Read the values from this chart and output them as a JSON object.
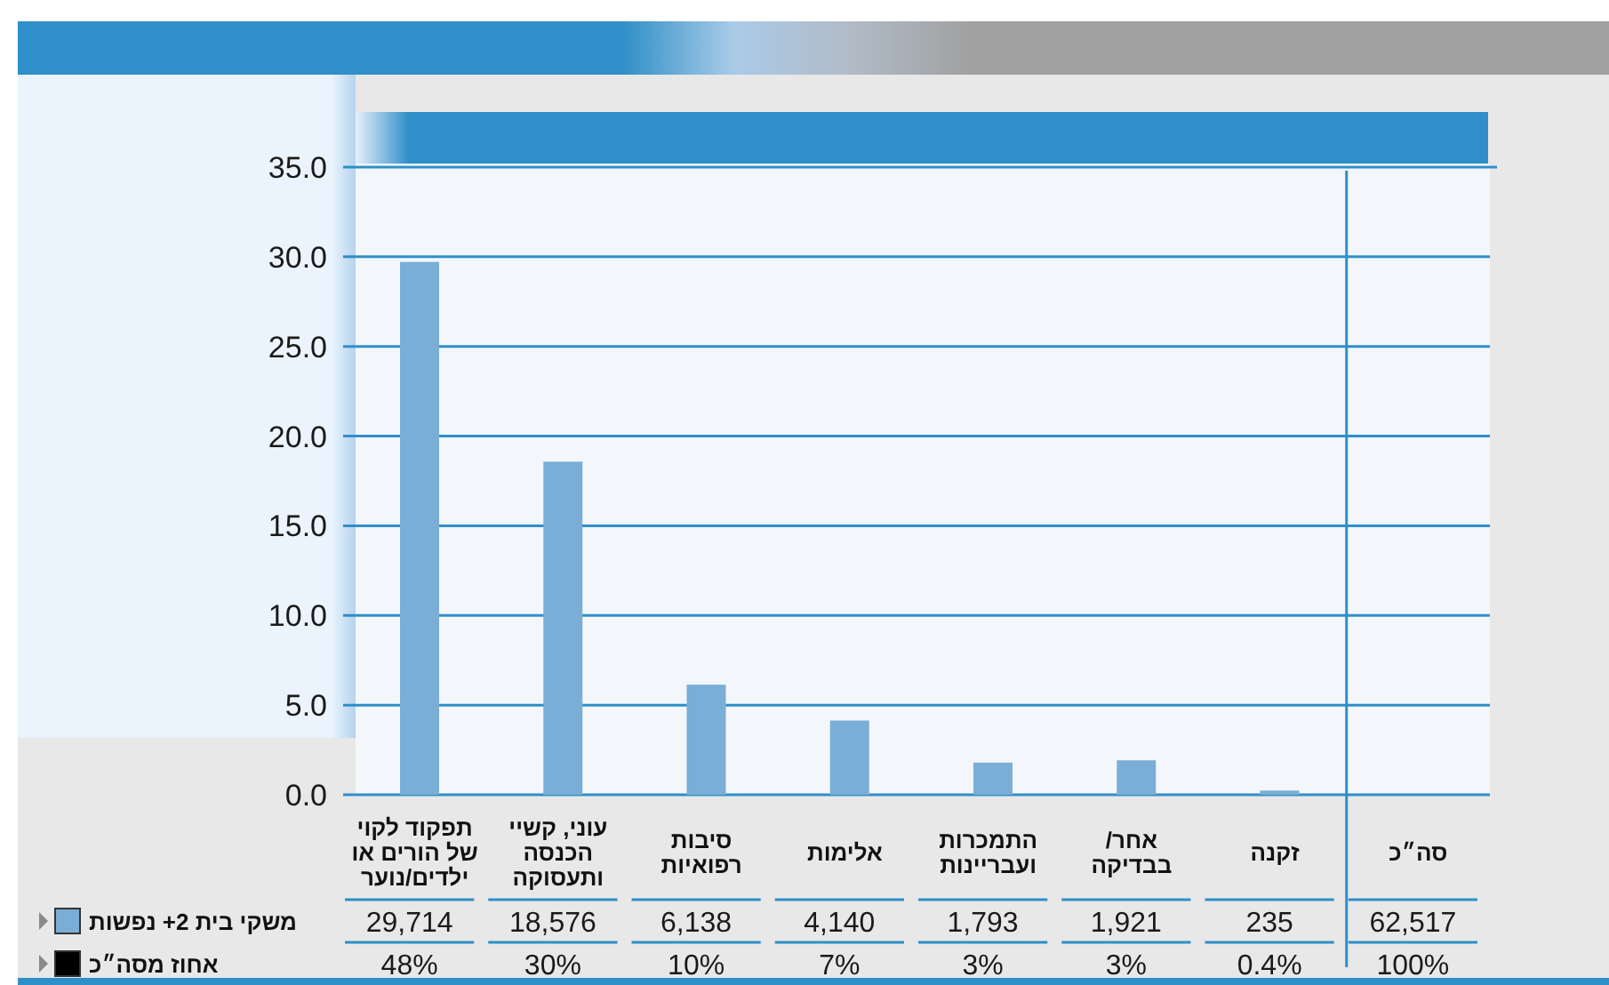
{
  "chart_data": {
    "type": "bar",
    "categories": [
      "תפקוד לקוי של הורים או ילדים/נוער",
      "עוני, קשיי הכנסה ותעסוקה",
      "סיבות רפואיות",
      "אלימות",
      "התמכרות ועבריינות",
      "אחר/ בבדיקה",
      "זקנה",
      "סה״כ"
    ],
    "series": [
      {
        "name": "משקי בית 2+ נפשות",
        "color": "#7aaed6",
        "values": [
          29.714,
          18.576,
          6.138,
          4.14,
          1.793,
          1.921,
          0.235,
          null
        ]
      },
      {
        "type": "other",
        "values": [
          null,
          null,
          null,
          null,
          null,
          null,
          null,
          null
        ],
        "value_labels": [
          "29,714",
          "18,576",
          "6,138",
          "4,140",
          "1,793",
          "1,921",
          "235",
          "62,517"
        ]
      },
      {
        "name": "אחוז מסה״כ",
        "type": "other",
        "color": "#000000",
        "values": [
          null,
          null,
          null,
          null,
          null,
          null,
          null,
          null
        ],
        "value_labels": [
          "48%",
          "30%",
          "10%",
          "7%",
          "3%",
          "3%",
          "0.4%",
          "100%"
        ]
      }
    ],
    "ylim": [
      0,
      35
    ],
    "yticks": [
      {
        "value": 0,
        "label": "0.0"
      },
      {
        "value": 5,
        "label": "5.0"
      },
      {
        "value": 10,
        "label": "10.0"
      },
      {
        "value": 15,
        "label": "15.0"
      },
      {
        "value": 20,
        "label": "20.0"
      },
      {
        "value": 25,
        "label": "25.0"
      },
      {
        "value": 30,
        "label": "30.0"
      },
      {
        "value": 35,
        "label": "35.0"
      }
    ],
    "grid": "y",
    "legend": "bottom left"
  }
}
